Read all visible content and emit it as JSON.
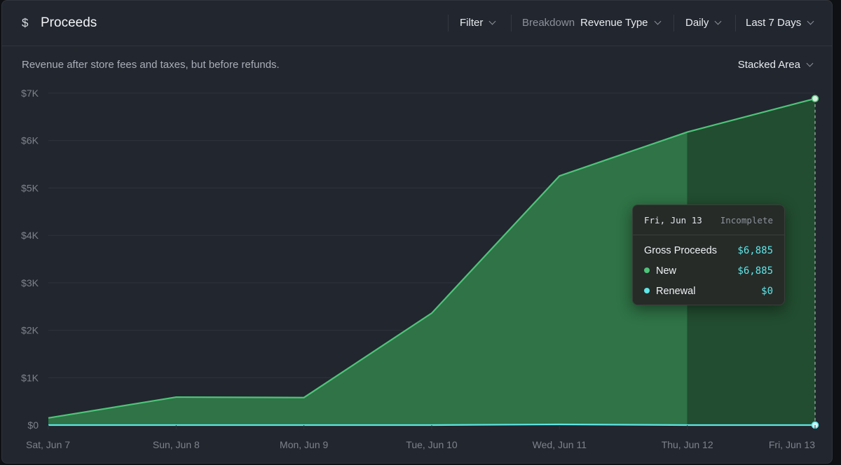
{
  "header": {
    "icon": "dollar-icon",
    "title": "Proceeds",
    "filter_label": "Filter",
    "breakdown_label": "Breakdown",
    "breakdown_value": "Revenue Type",
    "interval": "Daily",
    "range": "Last 7 Days"
  },
  "subtitle": "Revenue after store fees and taxes, but before refunds.",
  "chart_type_label": "Stacked Area",
  "colors": {
    "new": "#4ec479",
    "new_fill": "#2f7346",
    "new_fill_incomplete": "#224d30",
    "renewal": "#5fe6e8",
    "grid": "#2f333b",
    "text": "#7d828c"
  },
  "tooltip": {
    "date": "Fri, Jun 13",
    "status": "Incomplete",
    "total_label": "Gross Proceeds",
    "total_value": "$6,885",
    "rows": [
      {
        "label": "New",
        "value": "$6,885"
      },
      {
        "label": "Renewal",
        "value": "$0"
      }
    ]
  },
  "chart_data": {
    "type": "area",
    "stacked": true,
    "categories": [
      "Sat, Jun 7",
      "Sun, Jun 8",
      "Mon, Jun 9",
      "Tue, Jun 10",
      "Wed, Jun 11",
      "Thu, Jun 12",
      "Fri, Jun 13"
    ],
    "series": [
      {
        "name": "Renewal",
        "values": [
          0,
          0,
          0,
          0,
          15,
          0,
          0
        ]
      },
      {
        "name": "New",
        "values": [
          150,
          590,
          580,
          2360,
          5240,
          6180,
          6885
        ]
      }
    ],
    "y_ticks": [
      "$0",
      "$1K",
      "$2K",
      "$3K",
      "$4K",
      "$5K",
      "$6K",
      "$7K"
    ],
    "ylim": [
      0,
      7000
    ],
    "incomplete_from": "Thu, Jun 12",
    "grid": true
  }
}
